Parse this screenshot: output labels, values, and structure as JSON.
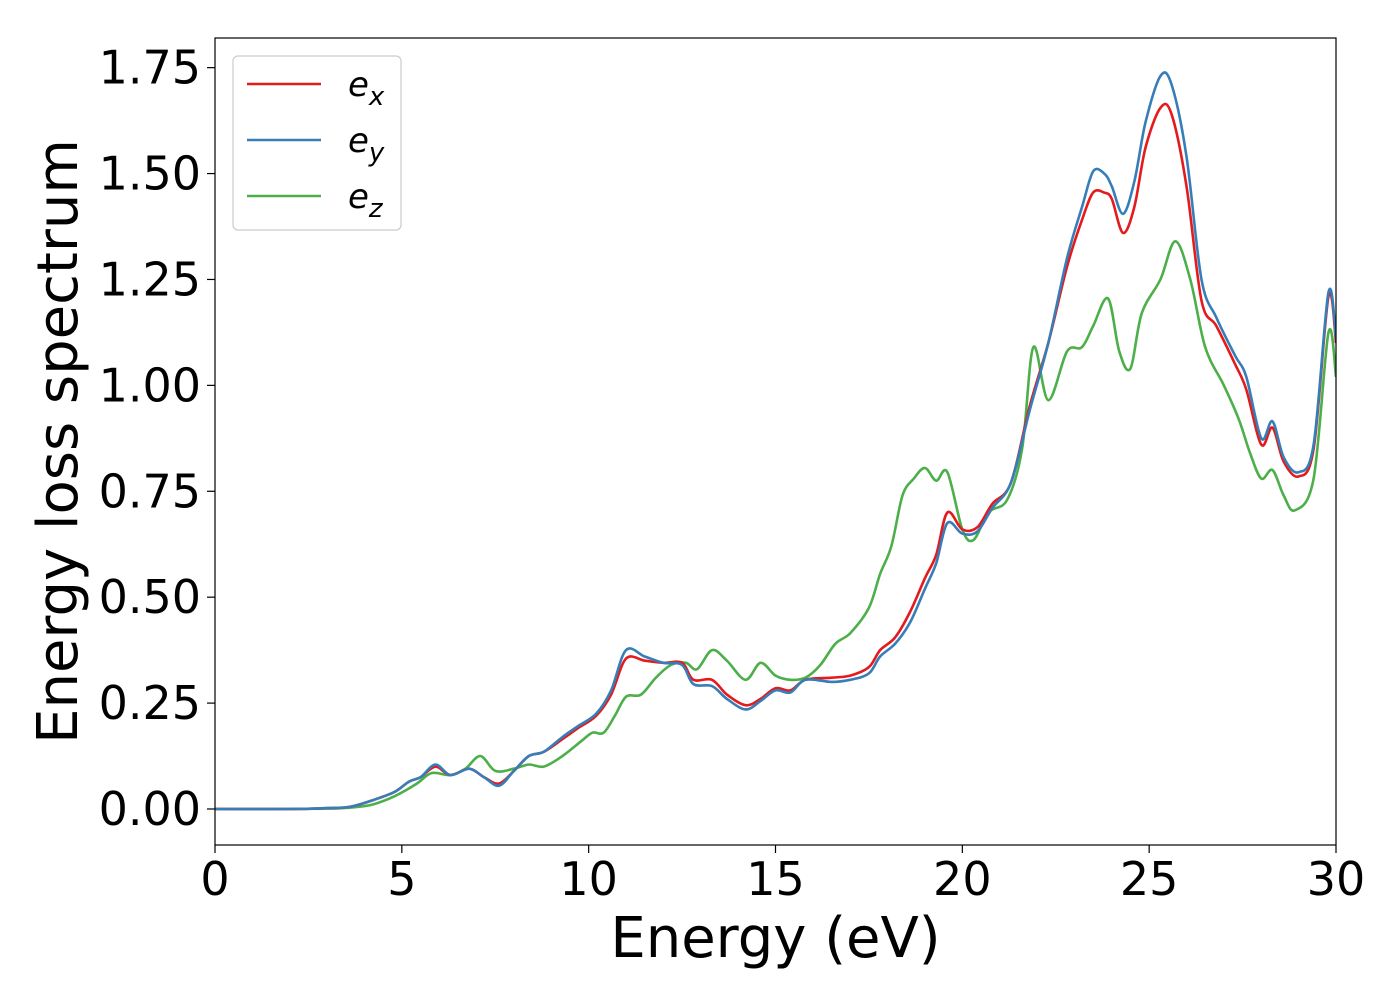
{
  "chart_data": {
    "type": "line",
    "title": "",
    "xlabel": "Energy (eV)",
    "ylabel": "Energy loss spectrum",
    "xlim": [
      0,
      30
    ],
    "ylim": [
      -0.085,
      1.82
    ],
    "xticks": [
      0,
      5,
      10,
      15,
      20,
      25,
      30
    ],
    "xtick_labels": [
      "0",
      "5",
      "10",
      "15",
      "20",
      "25",
      "30"
    ],
    "yticks": [
      0.0,
      0.25,
      0.5,
      0.75,
      1.0,
      1.25,
      1.5,
      1.75
    ],
    "ytick_labels": [
      "0.00",
      "0.25",
      "0.50",
      "0.75",
      "1.00",
      "1.25",
      "1.50",
      "1.75"
    ],
    "grid": false,
    "legend_position": "top-left",
    "series": [
      {
        "name": "e",
        "sub": "x",
        "color": "#e41a1c",
        "points": [
          [
            0,
            0.0
          ],
          [
            2,
            0.0
          ],
          [
            3,
            0.002
          ],
          [
            3.6,
            0.005
          ],
          [
            4.2,
            0.02
          ],
          [
            4.8,
            0.04
          ],
          [
            5.2,
            0.065
          ],
          [
            5.5,
            0.075
          ],
          [
            5.9,
            0.1
          ],
          [
            6.3,
            0.08
          ],
          [
            6.8,
            0.095
          ],
          [
            7.2,
            0.075
          ],
          [
            7.6,
            0.06
          ],
          [
            8.0,
            0.09
          ],
          [
            8.4,
            0.125
          ],
          [
            8.8,
            0.135
          ],
          [
            9.3,
            0.165
          ],
          [
            9.7,
            0.19
          ],
          [
            10.2,
            0.22
          ],
          [
            10.6,
            0.27
          ],
          [
            11.0,
            0.355
          ],
          [
            11.5,
            0.35
          ],
          [
            12.0,
            0.345
          ],
          [
            12.5,
            0.345
          ],
          [
            12.8,
            0.305
          ],
          [
            13.3,
            0.305
          ],
          [
            13.7,
            0.27
          ],
          [
            14.2,
            0.245
          ],
          [
            14.6,
            0.26
          ],
          [
            15.0,
            0.285
          ],
          [
            15.4,
            0.28
          ],
          [
            15.8,
            0.305
          ],
          [
            16.5,
            0.31
          ],
          [
            17.0,
            0.315
          ],
          [
            17.5,
            0.335
          ],
          [
            17.8,
            0.375
          ],
          [
            18.2,
            0.405
          ],
          [
            18.6,
            0.465
          ],
          [
            19.0,
            0.545
          ],
          [
            19.3,
            0.6
          ],
          [
            19.6,
            0.7
          ],
          [
            20.0,
            0.66
          ],
          [
            20.4,
            0.665
          ],
          [
            20.8,
            0.72
          ],
          [
            21.3,
            0.77
          ],
          [
            21.8,
            0.95
          ],
          [
            22.3,
            1.1
          ],
          [
            22.8,
            1.28
          ],
          [
            23.2,
            1.39
          ],
          [
            23.5,
            1.455
          ],
          [
            23.8,
            1.455
          ],
          [
            24.0,
            1.44
          ],
          [
            24.3,
            1.36
          ],
          [
            24.6,
            1.42
          ],
          [
            24.9,
            1.56
          ],
          [
            25.3,
            1.655
          ],
          [
            25.6,
            1.64
          ],
          [
            26.0,
            1.47
          ],
          [
            26.4,
            1.2
          ],
          [
            26.8,
            1.14
          ],
          [
            27.3,
            1.05
          ],
          [
            27.6,
            0.99
          ],
          [
            28.0,
            0.86
          ],
          [
            28.3,
            0.9
          ],
          [
            28.6,
            0.82
          ],
          [
            29.0,
            0.785
          ],
          [
            29.4,
            0.85
          ],
          [
            29.8,
            1.21
          ],
          [
            30.0,
            1.1
          ]
        ]
      },
      {
        "name": "e",
        "sub": "y",
        "color": "#377eb8",
        "points": [
          [
            0,
            0.0
          ],
          [
            2,
            0.0
          ],
          [
            3,
            0.002
          ],
          [
            3.6,
            0.005
          ],
          [
            4.2,
            0.02
          ],
          [
            4.8,
            0.04
          ],
          [
            5.2,
            0.065
          ],
          [
            5.5,
            0.075
          ],
          [
            5.9,
            0.105
          ],
          [
            6.3,
            0.08
          ],
          [
            6.8,
            0.095
          ],
          [
            7.2,
            0.075
          ],
          [
            7.6,
            0.055
          ],
          [
            8.0,
            0.09
          ],
          [
            8.4,
            0.125
          ],
          [
            8.8,
            0.135
          ],
          [
            9.3,
            0.17
          ],
          [
            9.7,
            0.195
          ],
          [
            10.2,
            0.225
          ],
          [
            10.6,
            0.28
          ],
          [
            11.0,
            0.375
          ],
          [
            11.5,
            0.36
          ],
          [
            12.0,
            0.345
          ],
          [
            12.5,
            0.34
          ],
          [
            12.8,
            0.295
          ],
          [
            13.3,
            0.29
          ],
          [
            13.7,
            0.26
          ],
          [
            14.2,
            0.235
          ],
          [
            14.6,
            0.255
          ],
          [
            15.0,
            0.28
          ],
          [
            15.4,
            0.275
          ],
          [
            15.8,
            0.305
          ],
          [
            16.5,
            0.3
          ],
          [
            17.0,
            0.305
          ],
          [
            17.5,
            0.32
          ],
          [
            17.8,
            0.36
          ],
          [
            18.2,
            0.39
          ],
          [
            18.6,
            0.44
          ],
          [
            19.0,
            0.52
          ],
          [
            19.3,
            0.58
          ],
          [
            19.6,
            0.675
          ],
          [
            20.0,
            0.65
          ],
          [
            20.4,
            0.655
          ],
          [
            20.8,
            0.71
          ],
          [
            21.3,
            0.77
          ],
          [
            21.8,
            0.94
          ],
          [
            22.3,
            1.1
          ],
          [
            22.8,
            1.3
          ],
          [
            23.2,
            1.42
          ],
          [
            23.5,
            1.505
          ],
          [
            23.8,
            1.5
          ],
          [
            24.0,
            1.47
          ],
          [
            24.3,
            1.405
          ],
          [
            24.6,
            1.48
          ],
          [
            24.9,
            1.62
          ],
          [
            25.3,
            1.73
          ],
          [
            25.6,
            1.71
          ],
          [
            26.0,
            1.54
          ],
          [
            26.4,
            1.25
          ],
          [
            26.8,
            1.16
          ],
          [
            27.3,
            1.07
          ],
          [
            27.6,
            1.02
          ],
          [
            28.0,
            0.875
          ],
          [
            28.3,
            0.915
          ],
          [
            28.6,
            0.83
          ],
          [
            29.0,
            0.795
          ],
          [
            29.4,
            0.86
          ],
          [
            29.8,
            1.22
          ],
          [
            30.0,
            1.11
          ]
        ]
      },
      {
        "name": "e",
        "sub": "z",
        "color": "#4daf4a",
        "points": [
          [
            0,
            0.0
          ],
          [
            2,
            0.0
          ],
          [
            3,
            0.001
          ],
          [
            3.6,
            0.003
          ],
          [
            4.2,
            0.01
          ],
          [
            4.8,
            0.03
          ],
          [
            5.4,
            0.06
          ],
          [
            5.8,
            0.085
          ],
          [
            6.3,
            0.08
          ],
          [
            6.7,
            0.095
          ],
          [
            7.1,
            0.125
          ],
          [
            7.5,
            0.09
          ],
          [
            8.0,
            0.095
          ],
          [
            8.4,
            0.105
          ],
          [
            8.8,
            0.1
          ],
          [
            9.3,
            0.125
          ],
          [
            9.8,
            0.16
          ],
          [
            10.1,
            0.18
          ],
          [
            10.4,
            0.18
          ],
          [
            10.7,
            0.22
          ],
          [
            11.0,
            0.265
          ],
          [
            11.4,
            0.27
          ],
          [
            11.8,
            0.31
          ],
          [
            12.2,
            0.34
          ],
          [
            12.6,
            0.345
          ],
          [
            12.9,
            0.33
          ],
          [
            13.3,
            0.375
          ],
          [
            13.7,
            0.35
          ],
          [
            14.2,
            0.305
          ],
          [
            14.6,
            0.345
          ],
          [
            15.0,
            0.315
          ],
          [
            15.4,
            0.305
          ],
          [
            15.8,
            0.31
          ],
          [
            16.2,
            0.34
          ],
          [
            16.6,
            0.39
          ],
          [
            17.0,
            0.415
          ],
          [
            17.5,
            0.475
          ],
          [
            17.8,
            0.555
          ],
          [
            18.1,
            0.62
          ],
          [
            18.4,
            0.74
          ],
          [
            18.7,
            0.78
          ],
          [
            19.0,
            0.805
          ],
          [
            19.3,
            0.775
          ],
          [
            19.6,
            0.795
          ],
          [
            20.0,
            0.66
          ],
          [
            20.3,
            0.635
          ],
          [
            20.7,
            0.7
          ],
          [
            21.2,
            0.73
          ],
          [
            21.6,
            0.85
          ],
          [
            21.9,
            1.09
          ],
          [
            22.3,
            0.965
          ],
          [
            22.8,
            1.08
          ],
          [
            23.2,
            1.09
          ],
          [
            23.5,
            1.14
          ],
          [
            23.9,
            1.205
          ],
          [
            24.2,
            1.08
          ],
          [
            24.5,
            1.04
          ],
          [
            24.8,
            1.17
          ],
          [
            25.3,
            1.25
          ],
          [
            25.7,
            1.34
          ],
          [
            26.1,
            1.25
          ],
          [
            26.5,
            1.09
          ],
          [
            27.0,
            1.0
          ],
          [
            27.4,
            0.92
          ],
          [
            27.7,
            0.84
          ],
          [
            28.0,
            0.78
          ],
          [
            28.3,
            0.8
          ],
          [
            28.6,
            0.74
          ],
          [
            28.9,
            0.705
          ],
          [
            29.4,
            0.78
          ],
          [
            29.8,
            1.125
          ],
          [
            30.0,
            1.02
          ]
        ]
      }
    ]
  }
}
